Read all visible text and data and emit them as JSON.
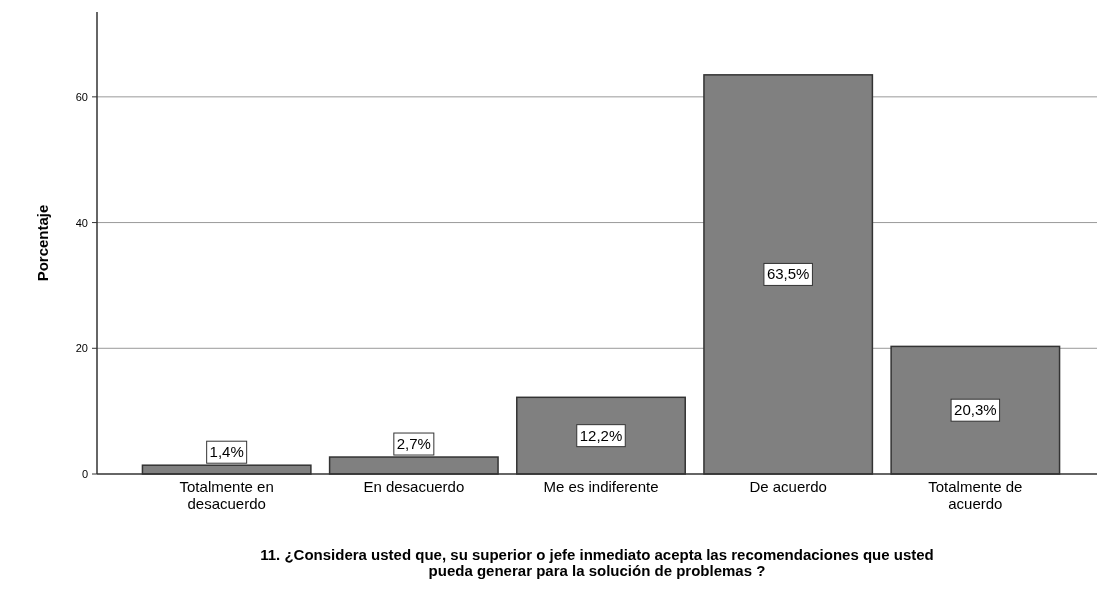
{
  "chart_data": {
    "type": "bar",
    "xlabel": "11. ¿Considera usted que, su superior o jefe inmediato acepta las recomendaciones que usted pueda generar para la solución de problemas ?",
    "ylabel": "Porcentaje",
    "categories": [
      "Totalmente en desacuerdo",
      "En desacuerdo",
      "Me es indiferente",
      "De acuerdo",
      "Totalmente de acuerdo"
    ],
    "values": [
      1.4,
      2.7,
      12.2,
      63.5,
      20.3
    ],
    "value_labels": [
      "1,4%",
      "2,7%",
      "12,2%",
      "63,5%",
      "20,3%"
    ],
    "color": "#808080",
    "ylim": [
      0,
      73.5
    ],
    "yticks": [
      0,
      20,
      40,
      60
    ],
    "grid": "y"
  }
}
